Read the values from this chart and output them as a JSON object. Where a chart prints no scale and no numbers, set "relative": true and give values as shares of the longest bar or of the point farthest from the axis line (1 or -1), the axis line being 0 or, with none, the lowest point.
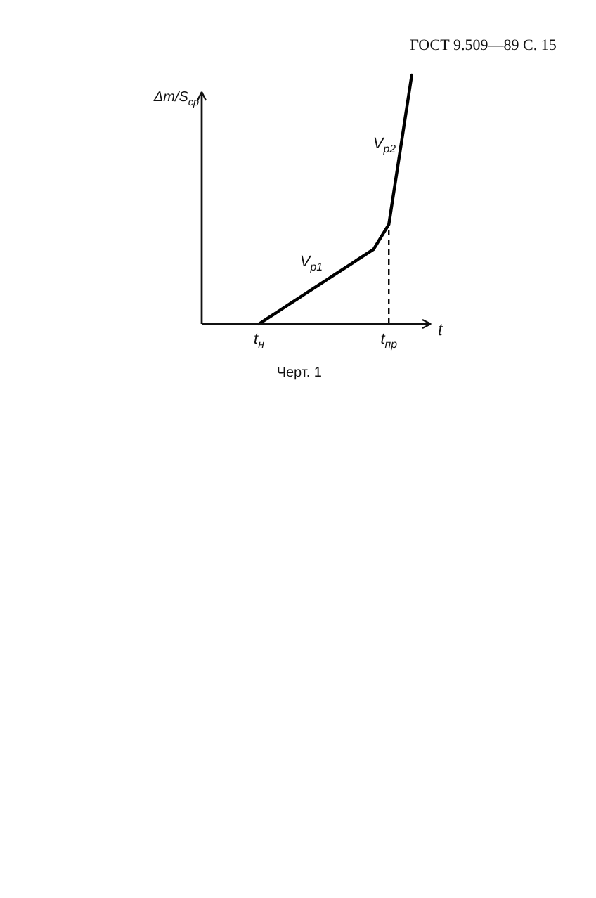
{
  "chart_data": {
    "type": "line",
    "relative": true,
    "categories": [
      null,
      null,
      null,
      null,
      null,
      null,
      null,
      "t$_{н}$",
      null,
      null,
      null,
      null,
      null,
      null,
      null,
      null,
      null,
      null,
      null,
      null,
      null,
      null,
      null,
      null,
      "t$_{пр}$",
      null,
      null,
      null,
      null,
      null
    ],
    "values": [
      null,
      null,
      null,
      null,
      null,
      null,
      null,
      0,
      0.02,
      0.04,
      0.06,
      0.08,
      0.1,
      0.12,
      0.14,
      0.16,
      0.18,
      0.2,
      0.22,
      0.24,
      0.26,
      0.28,
      0.3,
      0.35,
      0.4,
      0.6,
      0.8,
      1,
      null,
      null
    ],
    "color": "#000000",
    "xlabel": "t",
    "ylabel": "Δm/S$_{ср}$",
    "ref_lines": [
      {
        "axis": "x",
        "value": "t$_{пр}$",
        "line_style": "dashed",
        "color": "#000000"
      }
    ],
    "annotations": [
      "V$_{р1}$",
      "V$_{р2}$",
      "ГОСТ 9.509—89 С. 15",
      "Черт. 1"
    ]
  }
}
